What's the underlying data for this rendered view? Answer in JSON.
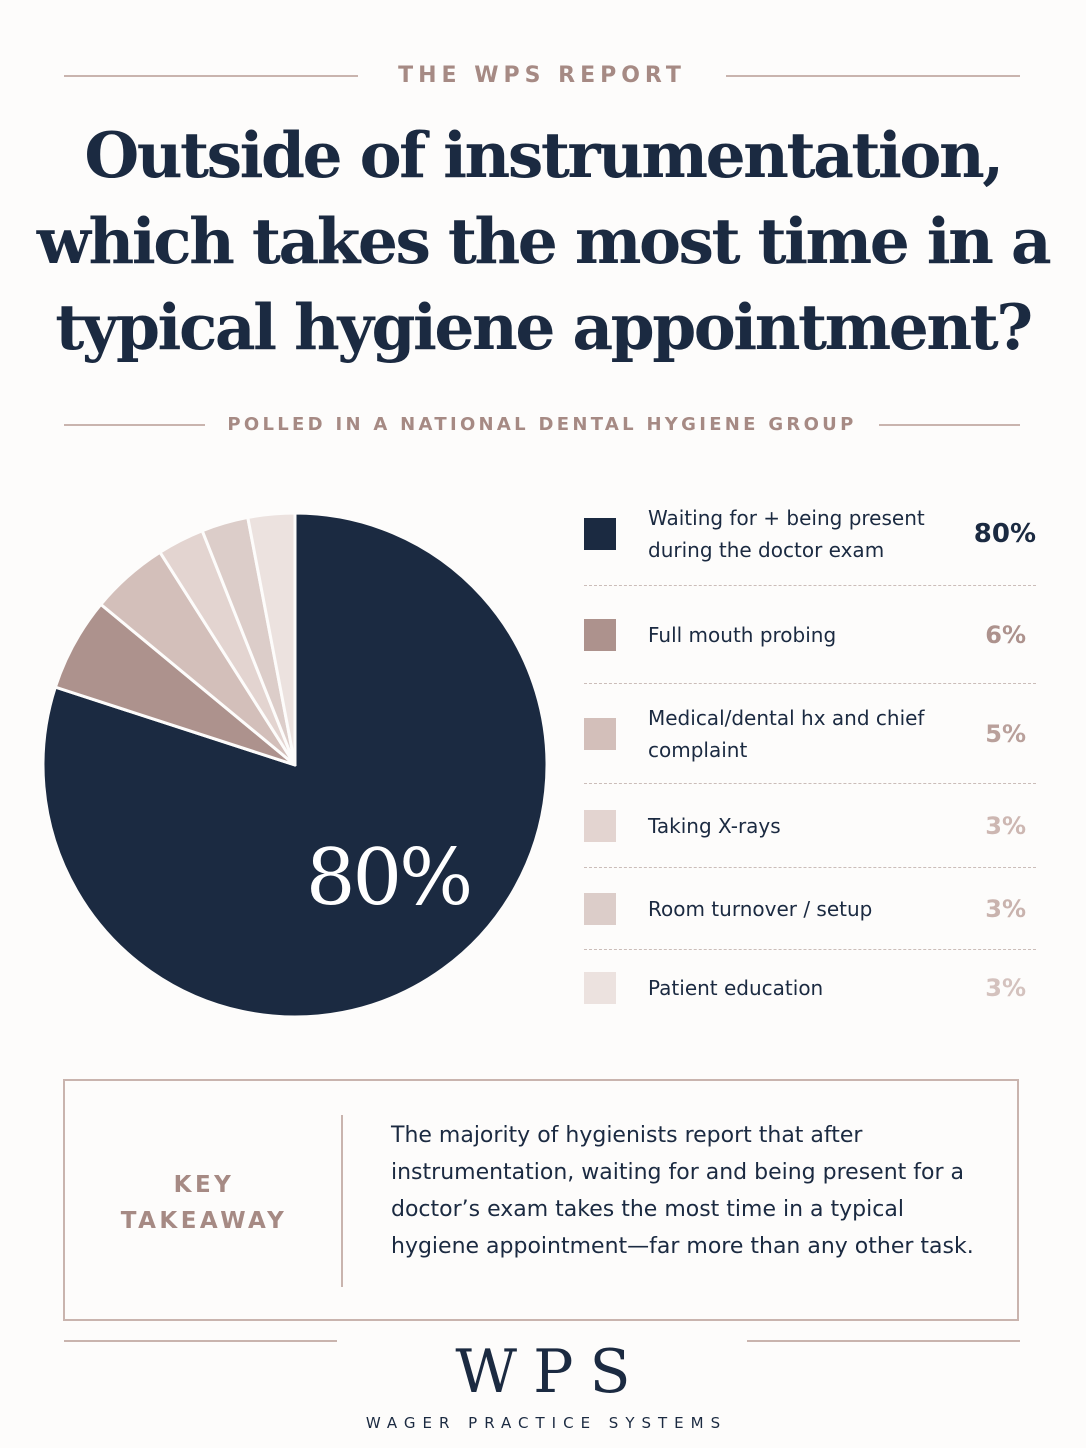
{
  "header": {
    "kicker": "THE WPS REPORT",
    "headline": "Outside of instrumentation, which takes the most time in a typical hygiene appointment?",
    "subkicker": "POLLED IN A NATIONAL DENTAL HYGIENE GROUP"
  },
  "chart_data": {
    "type": "pie",
    "center_label": "80%",
    "slices": [
      {
        "label": "Waiting for + being present during the doctor exam",
        "value": 80,
        "display": "80%",
        "color": "#1b2a41"
      },
      {
        "label": "Full mouth probing",
        "value": 6,
        "display": "6%",
        "color": "#ad928d"
      },
      {
        "label": "Medical/dental hx and chief complaint",
        "value": 5,
        "display": "5%",
        "color": "#d3bfba"
      },
      {
        "label": "Taking X-rays",
        "value": 3,
        "display": "3%",
        "color": "#e3d4d0"
      },
      {
        "label": "Room turnover / setup",
        "value": 3,
        "display": "3%",
        "color": "#dccdc9"
      },
      {
        "label": "Patient education",
        "value": 3,
        "display": "3%",
        "color": "#ece2df"
      }
    ]
  },
  "takeaway": {
    "label": "KEY TAKEAWAY",
    "text": "The majority of hygienists report that after instrumentation, waiting for and being present for a doctor’s exam takes the most time in a typical hygiene appointment—far more than any other task."
  },
  "brand": {
    "logo": "WPS",
    "name": "WAGER PRACTICE SYSTEMS"
  },
  "colors": {
    "navy": "#1b2a41",
    "mauve_text": "#a68a84",
    "rule": "#c9b4ae"
  }
}
